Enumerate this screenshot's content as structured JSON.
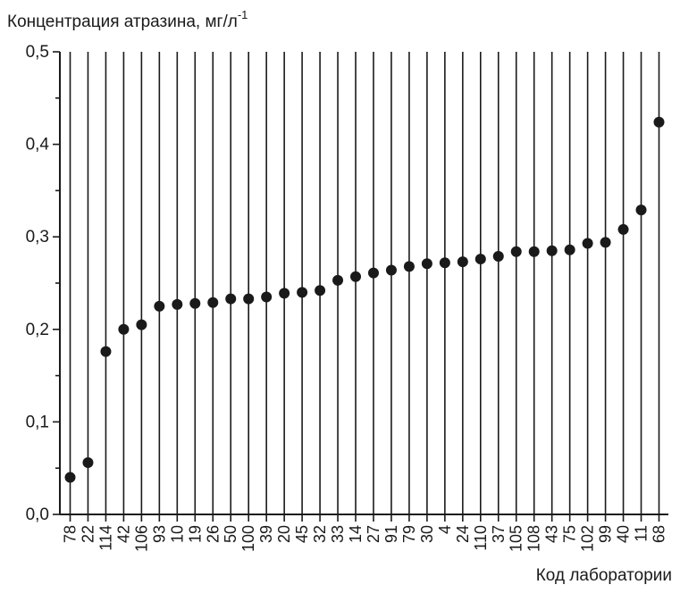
{
  "chart_data": {
    "type": "scatter",
    "title": "",
    "ylabel": "Концентрация атразина, мг/л",
    "ylabel_sup": "-1",
    "xlabel": "Код лаборатории",
    "ylim": [
      0.0,
      0.5
    ],
    "yticks": [
      "0,0",
      "0,1",
      "0,2",
      "0,3",
      "0,4",
      "0,5"
    ],
    "grid": "vertical lines at each laboratory",
    "categories": [
      "78",
      "22",
      "114",
      "42",
      "106",
      "93",
      "10",
      "19",
      "26",
      "50",
      "100",
      "39",
      "20",
      "45",
      "32",
      "33",
      "14",
      "27",
      "91",
      "79",
      "30",
      "4",
      "24",
      "110",
      "37",
      "105",
      "108",
      "43",
      "75",
      "102",
      "99",
      "40",
      "11",
      "68"
    ],
    "values": [
      0.04,
      0.056,
      0.176,
      0.2,
      0.205,
      0.225,
      0.227,
      0.228,
      0.229,
      0.233,
      0.233,
      0.235,
      0.239,
      0.24,
      0.242,
      0.253,
      0.257,
      0.261,
      0.264,
      0.268,
      0.271,
      0.272,
      0.273,
      0.276,
      0.279,
      0.284,
      0.284,
      0.285,
      0.286,
      0.293,
      0.294,
      0.308,
      0.329,
      0.424
    ]
  }
}
